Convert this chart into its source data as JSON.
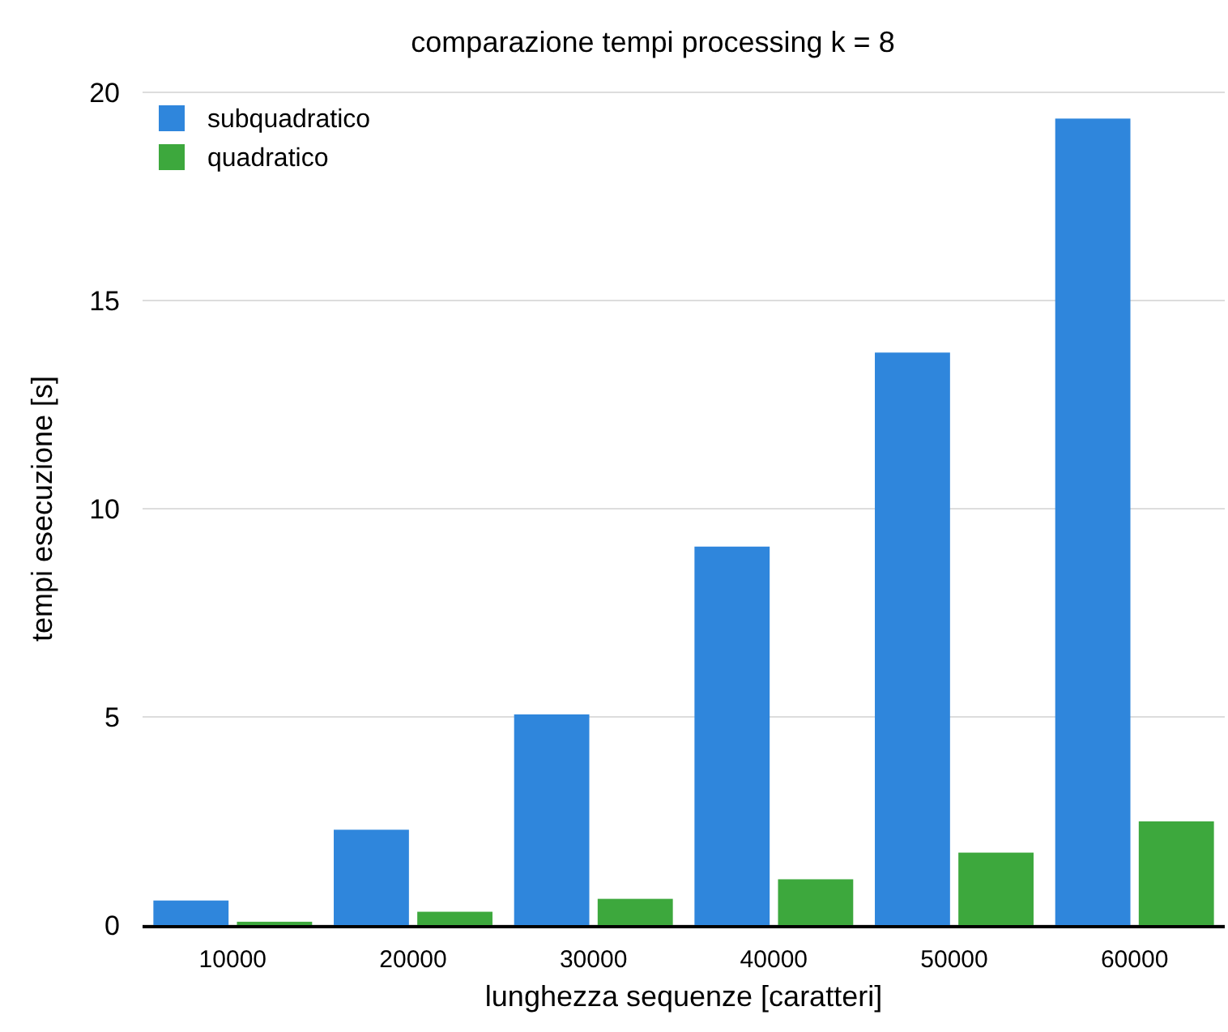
{
  "chart_data": {
    "type": "bar",
    "title": "comparazione tempi processing k = 8",
    "xlabel": "lunghezza sequenze [caratteri]",
    "ylabel": "tempi esecuzione [s]",
    "categories": [
      "10000",
      "20000",
      "30000",
      "40000",
      "50000",
      "60000"
    ],
    "series": [
      {
        "name": "subquadratico",
        "color": "#2f86dc",
        "values": [
          0.59,
          2.29,
          5.06,
          9.09,
          13.75,
          19.37
        ]
      },
      {
        "name": "quadratico",
        "color": "#3da83d",
        "values": [
          0.08,
          0.32,
          0.63,
          1.1,
          1.74,
          2.49
        ]
      }
    ],
    "ylim": [
      0,
      20
    ],
    "yticks": [
      0,
      5,
      10,
      15,
      20
    ],
    "grid": "y",
    "legend": "top left"
  }
}
